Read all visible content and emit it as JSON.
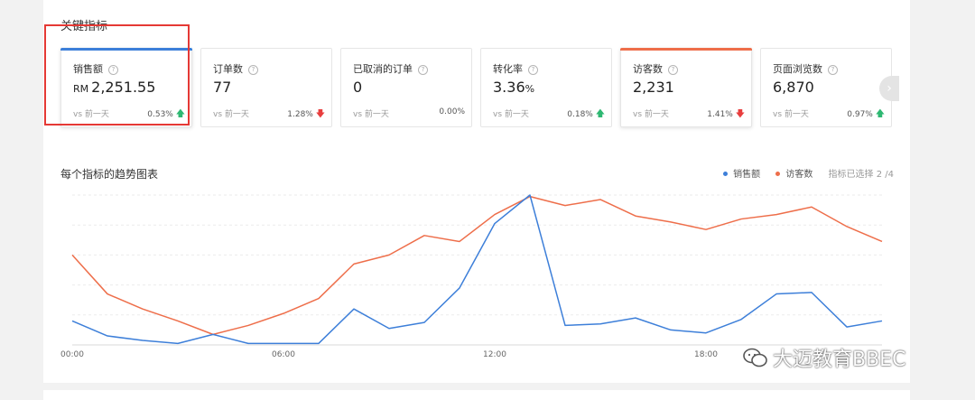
{
  "section_title": "关键指标",
  "cards": [
    {
      "name": "销售额",
      "prefix": "RM",
      "value": "2,251.55",
      "suffix": "",
      "compare": "vs 前一天",
      "delta": "0.53%",
      "trend": "up",
      "accent": "#3d7fd9"
    },
    {
      "name": "订单数",
      "prefix": "",
      "value": "77",
      "suffix": "",
      "compare": "vs 前一天",
      "delta": "1.28%",
      "trend": "down",
      "accent": ""
    },
    {
      "name": "已取消的订单",
      "prefix": "",
      "value": "0",
      "suffix": "",
      "compare": "vs 前一天",
      "delta": "0.00%",
      "trend": "none",
      "accent": ""
    },
    {
      "name": "转化率",
      "prefix": "",
      "value": "3.36",
      "suffix": "%",
      "compare": "vs 前一天",
      "delta": "0.18%",
      "trend": "up",
      "accent": ""
    },
    {
      "name": "访客数",
      "prefix": "",
      "value": "2,231",
      "suffix": "",
      "compare": "vs 前一天",
      "delta": "1.41%",
      "trend": "down",
      "accent": "#ee6e4a"
    },
    {
      "name": "页面浏览数",
      "prefix": "",
      "value": "6,870",
      "suffix": "",
      "compare": "vs 前一天",
      "delta": "0.97%",
      "trend": "up",
      "accent": ""
    }
  ],
  "help_glyph": "?",
  "next_glyph": "›",
  "chart_title": "每个指标的趋势图表",
  "legend": {
    "items": [
      {
        "name": "销售额",
        "color": "#3d7fd9"
      },
      {
        "name": "访客数",
        "color": "#ee6e4a"
      }
    ],
    "selected_count": "指标已选择 2 /4"
  },
  "watermark": "大迈教育BBEC",
  "chart_data": {
    "type": "line",
    "x": [
      0,
      1,
      2,
      3,
      4,
      5,
      6,
      7,
      8,
      9,
      10,
      11,
      12,
      13,
      14,
      15,
      16,
      17,
      18,
      19,
      20,
      21,
      22,
      23
    ],
    "tick_labels": [
      "00:00",
      "06:00",
      "12:00",
      "18:00"
    ],
    "tick_positions": [
      0,
      6,
      12,
      18
    ],
    "ylim": [
      0,
      100
    ],
    "grid": true,
    "series": [
      {
        "name": "销售额",
        "color": "#3d7fd9",
        "values": [
          16,
          6,
          3,
          1,
          7,
          1,
          1,
          1,
          24,
          11,
          15,
          38,
          81,
          100,
          13,
          14,
          18,
          10,
          8,
          17,
          34,
          35,
          12,
          16
        ]
      },
      {
        "name": "访客数",
        "color": "#ee6e4a",
        "values": [
          60,
          34,
          24,
          16,
          7,
          13,
          21,
          31,
          54,
          60,
          73,
          69,
          87,
          99,
          93,
          97,
          86,
          82,
          77,
          84,
          87,
          92,
          79,
          69
        ]
      }
    ]
  }
}
